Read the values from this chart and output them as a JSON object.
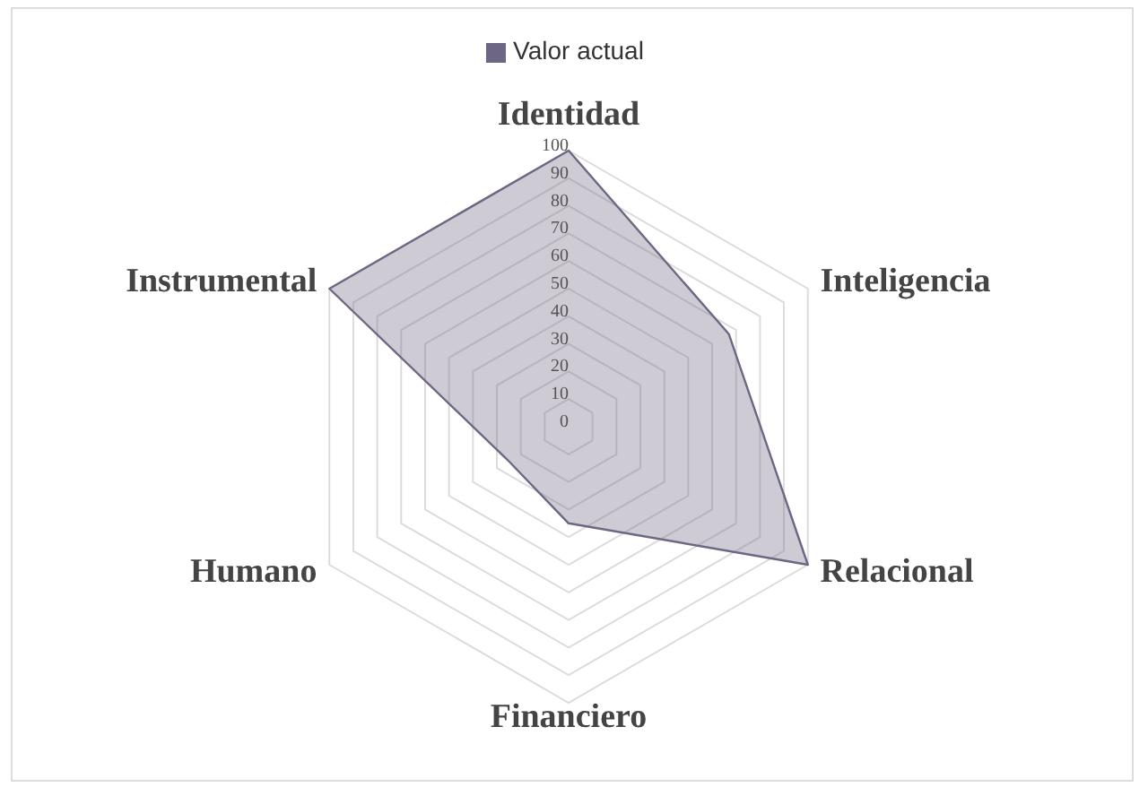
{
  "chart_data": {
    "type": "radar",
    "categories": [
      "Identidad",
      "Inteligencia",
      "Relacional",
      "Financiero",
      "Humano",
      "Instrumental"
    ],
    "series": [
      {
        "name": "Valor actual",
        "color": "#6e6784",
        "values": [
          100,
          67,
          100,
          35,
          25,
          100
        ]
      }
    ],
    "ylim": [
      0,
      100
    ],
    "yticks": [
      0,
      10,
      20,
      30,
      40,
      50,
      60,
      70,
      80,
      90,
      100
    ],
    "grid": true,
    "legend": "top"
  }
}
